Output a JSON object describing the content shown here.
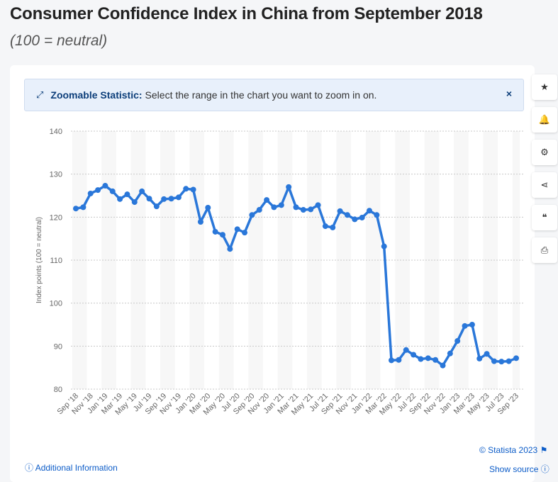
{
  "header": {
    "title": "Consumer Confidence Index in China from September 2018",
    "subtitle": "(100 = neutral)"
  },
  "banner": {
    "icon": "expand-icon",
    "label": "Zoomable Statistic:",
    "text": "Select the range in the chart you want to zoom in on.",
    "close": "×"
  },
  "side_buttons": [
    {
      "icon": "star-icon",
      "glyph": "★"
    },
    {
      "icon": "bell-icon",
      "glyph": "🔔"
    },
    {
      "icon": "gear-icon",
      "glyph": "⚙"
    },
    {
      "icon": "share-icon",
      "glyph": "⋖"
    },
    {
      "icon": "quote-icon",
      "glyph": "❝"
    },
    {
      "icon": "print-icon",
      "glyph": "⎙"
    }
  ],
  "footer": {
    "copyright": "© Statista 2023",
    "additional": "Additional Information",
    "source": "Show source"
  },
  "colors": {
    "line": "#2a77d9",
    "accent": "#0c5cc8"
  },
  "chart_data": {
    "type": "line",
    "title": "Consumer Confidence Index in China from September 2018",
    "xlabel": "",
    "ylabel": "Index points (100 = neutral)",
    "ylim": [
      80,
      140
    ],
    "yticks": [
      80,
      90,
      100,
      110,
      120,
      130,
      140
    ],
    "grid": true,
    "x": [
      "Sep '18",
      "Oct '18",
      "Nov '18",
      "Dec '18",
      "Jan '19",
      "Feb '19",
      "Mar '19",
      "Apr '19",
      "May '19",
      "Jun '19",
      "Jul '19",
      "Aug '19",
      "Sep '19",
      "Oct '19",
      "Nov '19",
      "Dec '19",
      "Jan '20",
      "Feb '20",
      "Mar '20",
      "Apr '20",
      "May '20",
      "Jun '20",
      "Jul '20",
      "Aug '20",
      "Sep '20",
      "Oct '20",
      "Nov '20",
      "Dec '20",
      "Jan '21",
      "Feb '21",
      "Mar '21",
      "Apr '21",
      "May '21",
      "Jun '21",
      "Jul '21",
      "Aug '21",
      "Sep '21",
      "Oct '21",
      "Nov '21",
      "Dec '21",
      "Jan '22",
      "Feb '22",
      "Mar '22",
      "Apr '22",
      "May '22",
      "Jun '22",
      "Jul '22",
      "Aug '22",
      "Sep '22",
      "Oct '22",
      "Nov '22",
      "Dec '22",
      "Jan '23",
      "Feb '23",
      "Mar '23",
      "Apr '23",
      "May '23",
      "Jun '23",
      "Jul '23",
      "Aug '23",
      "Sep '23"
    ],
    "values": [
      122.0,
      122.3,
      125.5,
      126.3,
      127.3,
      126.0,
      124.2,
      125.3,
      123.5,
      126.0,
      124.3,
      122.5,
      124.2,
      124.3,
      124.6,
      126.6,
      126.4,
      118.9,
      122.2,
      116.6,
      115.9,
      112.6,
      117.2,
      116.4,
      120.5,
      121.7,
      124.0,
      122.3,
      122.8,
      127.0,
      122.3,
      121.7,
      121.8,
      122.8,
      117.9,
      117.6,
      121.4,
      120.5,
      119.5,
      119.9,
      121.5,
      120.5,
      113.2,
      86.7,
      86.8,
      89.1,
      88.0,
      87.0,
      87.2,
      86.8,
      85.5,
      88.3,
      91.2,
      94.7,
      95.0,
      87.1,
      88.2,
      86.5,
      86.4,
      86.5,
      87.2
    ]
  }
}
